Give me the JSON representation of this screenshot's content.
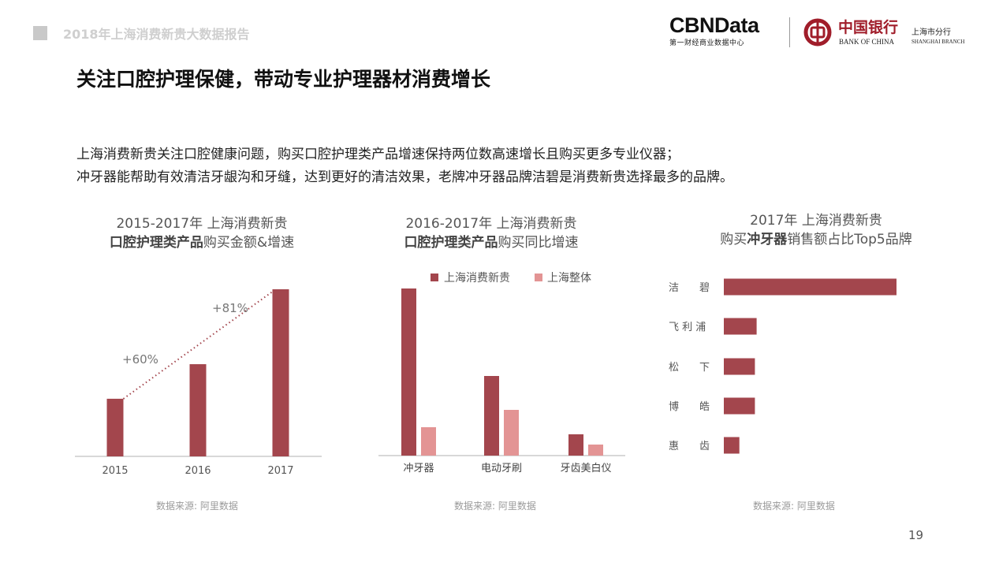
{
  "header": {
    "report_title": "2018年上海消费新贵大数据报告",
    "cbn_logo": "CBNData",
    "cbn_sub": "第一财经商业数据中心",
    "boc_cn": "中国银行",
    "boc_en": "BANK OF CHINA",
    "branch_cn": "上海市分行",
    "branch_en": "SHANGHAI BRANCH"
  },
  "page": {
    "title": "关注口腔护理保健，带动专业护理器材消费增长",
    "desc_line1": "上海消费新贵关注口腔健康问题，购买口腔护理类产品增速保持两位数高速增长且购买更多专业仪器；",
    "desc_line2": "冲牙器能帮助有效清洁牙龈沟和牙缝，达到更好的清洁效果，老牌冲牙器品牌洁碧是消费新贵选择最多的品牌。",
    "page_number": "19"
  },
  "colors": {
    "primary": "#a3464d",
    "light": "#e39494",
    "axis": "#cccccc"
  },
  "chart_data": [
    {
      "type": "bar",
      "title_line1": "2015-2017年 上海消费新贵",
      "title_bold": "口腔护理类产品",
      "title_rest": "购买金额&增速",
      "categories": [
        "2015",
        "2016",
        "2017"
      ],
      "values": [
        100,
        160,
        290
      ],
      "annotations": [
        "+60%",
        "+81%"
      ],
      "source": "数据来源: 阿里数据"
    },
    {
      "type": "bar",
      "title_line1": "2016-2017年 上海消费新贵",
      "title_bold": "口腔护理类产品",
      "title_rest": "购买同比增速",
      "categories": [
        "冲牙器",
        "电动牙刷",
        "牙齿美白仪"
      ],
      "series": [
        {
          "name": "上海消费新贵",
          "values": [
            212,
            101,
            27
          ]
        },
        {
          "name": "上海整体",
          "values": [
            36,
            58,
            14
          ]
        }
      ],
      "legend": "top",
      "source": "数据来源: 阿里数据"
    },
    {
      "type": "bar",
      "orientation": "horizontal",
      "title_line1": "2017年 上海消费新贵",
      "title_pre": "购买",
      "title_bold": "冲牙器",
      "title_rest": "销售额占比Top5品牌",
      "categories": [
        "洁　　碧",
        "飞 利 浦",
        "松　　下",
        "博　　皓",
        "惠　　齿"
      ],
      "values": [
        100,
        19,
        18,
        18,
        9
      ],
      "source": "数据来源: 阿里数据"
    }
  ]
}
